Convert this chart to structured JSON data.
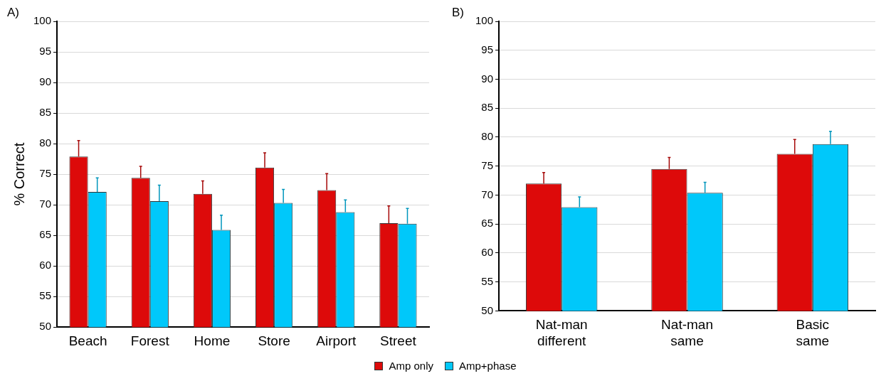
{
  "chart_data": [
    {
      "type": "bar",
      "title": "A)",
      "ylabel": "% Correct",
      "categories": [
        "Beach",
        "Forest",
        "Home",
        "Store",
        "Airport",
        "Street"
      ],
      "series": [
        {
          "name": "Amp only",
          "color": "#dd0a0a",
          "values": [
            77.9,
            74.4,
            71.8,
            76.1,
            72.4,
            67.0
          ],
          "errors": [
            [
              77.9,
              80.5
            ],
            [
              74.4,
              76.3
            ],
            [
              71.8,
              73.9
            ],
            [
              76.1,
              78.5
            ],
            [
              72.4,
              75.1
            ],
            [
              67.0,
              69.8
            ]
          ]
        },
        {
          "name": "Amp+phase",
          "color": "#00c8fa",
          "values": [
            72.1,
            70.6,
            65.9,
            70.3,
            68.8,
            66.9
          ],
          "errors": [
            [
              72.1,
              74.4
            ],
            [
              70.6,
              73.2
            ],
            [
              65.9,
              68.3
            ],
            [
              70.3,
              72.5
            ],
            [
              68.8,
              70.8
            ],
            [
              66.9,
              69.4
            ]
          ]
        }
      ],
      "ylim": [
        50,
        100
      ],
      "yticks": [
        50,
        55,
        60,
        65,
        70,
        75,
        80,
        85,
        90,
        95,
        100
      ],
      "grid": "y",
      "legend": "bottom"
    },
    {
      "type": "bar",
      "title": "B)",
      "categories": [
        "Nat-man different",
        "Nat-man same",
        "Basic same"
      ],
      "series": [
        {
          "color": "#dd0a0a",
          "values": [
            72.0,
            74.5,
            77.1
          ],
          "errors": [
            [
              72.0,
              73.9
            ],
            [
              74.5,
              76.5
            ],
            [
              77.1,
              79.6
            ]
          ]
        },
        {
          "color": "#00c8fa",
          "values": [
            67.9,
            70.4,
            78.8
          ],
          "errors": [
            [
              67.9,
              69.7
            ],
            [
              70.4,
              72.2
            ],
            [
              78.8,
              81.0
            ]
          ]
        }
      ],
      "ylim": [
        50,
        100
      ],
      "yticks": [
        50,
        55,
        60,
        65,
        70,
        75,
        80,
        85,
        90,
        95,
        100
      ],
      "grid": "y"
    }
  ]
}
